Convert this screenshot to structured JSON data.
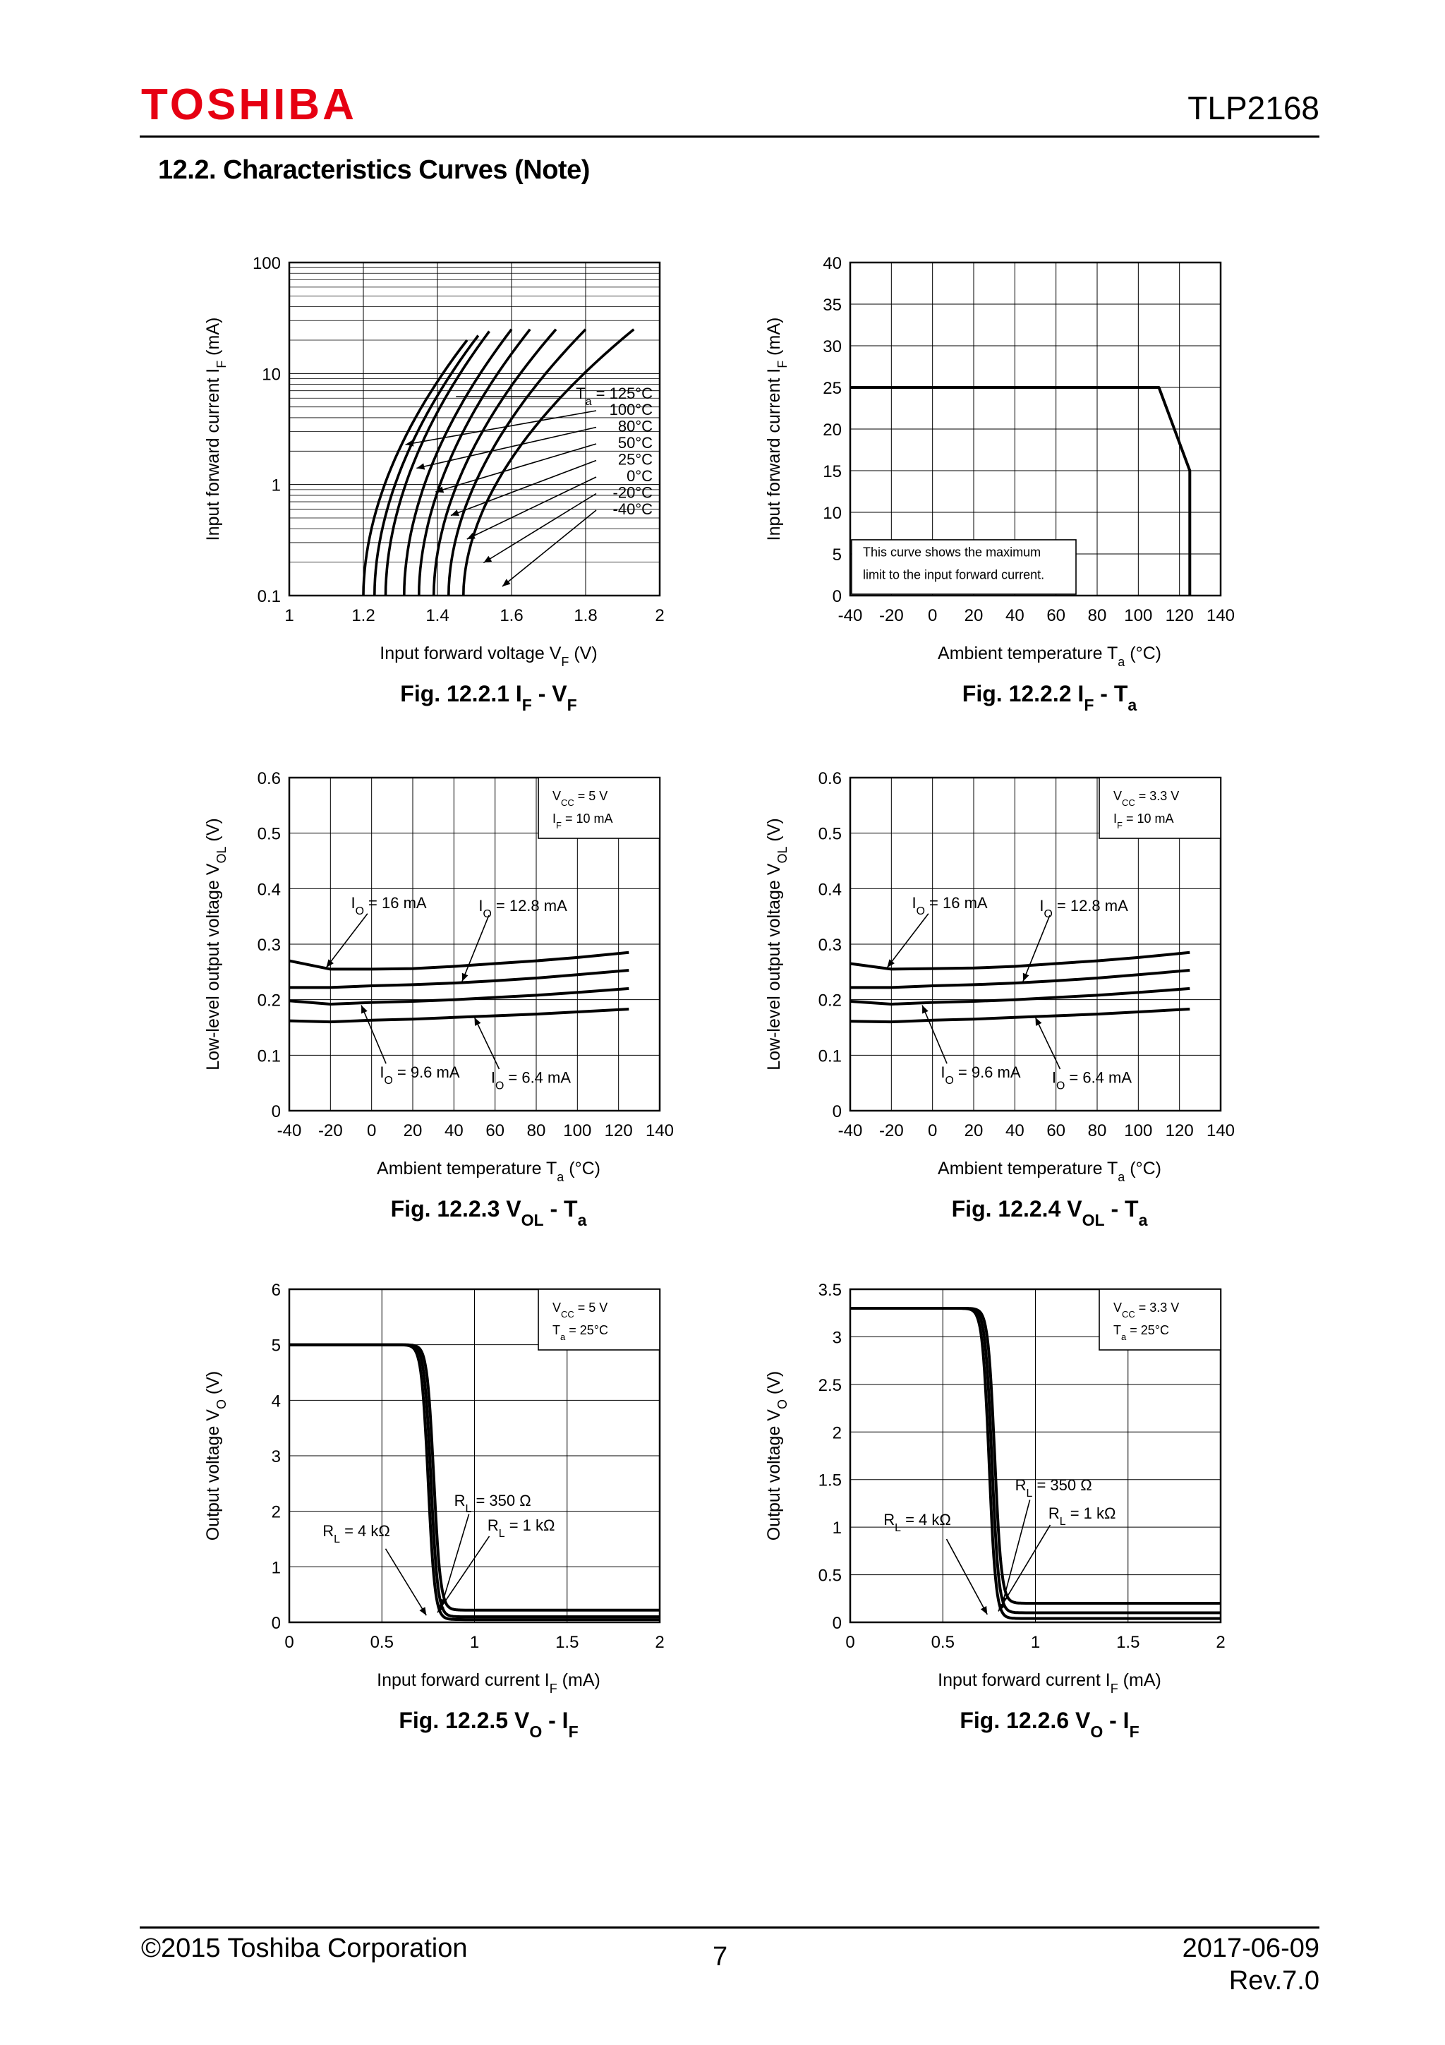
{
  "header": {
    "logo": "TOSHIBA",
    "part": "TLP2168",
    "section_title": "12.2. Characteristics Curves (Note)"
  },
  "footer": {
    "copyright": "©2015 Toshiba Corporation",
    "page": "7",
    "date": "2017-06-09",
    "rev": "Rev.7.0"
  },
  "chart_data": [
    {
      "id": "fig1",
      "type": "line",
      "yscale": "log",
      "caption": {
        "fig": "Fig. 12.2.1",
        "y": "I",
        "ys": "F",
        "x": "V",
        "xs": "F"
      },
      "xlabel": {
        "text": "Input forward voltage",
        "sym": "V",
        "sub": "F",
        "unit": "(V)"
      },
      "ylabel": {
        "text": "Input forward current",
        "sym": "I",
        "sub": "F",
        "unit": "(mA)"
      },
      "xlim": [
        1,
        2
      ],
      "ylim": [
        0.1,
        100
      ],
      "xticks": [
        1,
        1.2,
        1.4,
        1.6,
        1.8,
        2
      ],
      "xtick_labels": [
        "1",
        "1.2",
        "1.4",
        "1.6",
        "1.8",
        "2"
      ],
      "yticks": [
        0.1,
        1,
        10,
        100
      ],
      "ytick_labels": [
        "0.1",
        "1",
        "10",
        "100"
      ],
      "legend_title": {
        "sym": "T",
        "sub": "a",
        "rest": " = 125°C"
      },
      "legend_rest": [
        "100°C",
        "80°C",
        "50°C",
        "25°C",
        "0°C",
        "-20°C",
        "-40°C"
      ],
      "series": [
        {
          "name": "125°C",
          "vf0": 1.2,
          "vf1": 1.48,
          "if_max": 20
        },
        {
          "name": "100°C",
          "vf0": 1.23,
          "vf1": 1.51,
          "if_max": 22
        },
        {
          "name": "80°C",
          "vf0": 1.26,
          "vf1": 1.54,
          "if_max": 24
        },
        {
          "name": "50°C",
          "vf0": 1.31,
          "vf1": 1.6,
          "if_max": 25
        },
        {
          "name": "25°C",
          "vf0": 1.35,
          "vf1": 1.65,
          "if_max": 25
        },
        {
          "name": "0°C",
          "vf0": 1.39,
          "vf1": 1.72,
          "if_max": 25
        },
        {
          "name": "-20°C",
          "vf0": 1.43,
          "vf1": 1.8,
          "if_max": 25
        },
        {
          "name": "-40°C",
          "vf0": 1.47,
          "vf1": 1.93,
          "if_max": 25
        }
      ]
    },
    {
      "id": "fig2",
      "type": "line",
      "caption": {
        "fig": "Fig. 12.2.2",
        "y": "I",
        "ys": "F",
        "x": "T",
        "xs": "a"
      },
      "xlabel": {
        "text": "Ambient temperature",
        "sym": "T",
        "sub": "a",
        "unit": "(°C)"
      },
      "ylabel": {
        "text": "Input forward current",
        "sym": "I",
        "sub": "F",
        "unit": "(mA)"
      },
      "xlim": [
        -40,
        140
      ],
      "ylim": [
        0,
        40
      ],
      "xticks": [
        -40,
        -20,
        0,
        20,
        40,
        60,
        80,
        100,
        120,
        140
      ],
      "xtick_labels": [
        "-40",
        "-20",
        "0",
        "20",
        "40",
        "60",
        "80",
        "100",
        "120",
        "140"
      ],
      "yticks": [
        0,
        5,
        10,
        15,
        20,
        25,
        30,
        35,
        40
      ],
      "ytick_labels": [
        "0",
        "5",
        "10",
        "15",
        "20",
        "25",
        "30",
        "35",
        "40"
      ],
      "note": [
        "This curve shows the maximum",
        "limit to the input forward current."
      ],
      "series": [
        {
          "name": "max IF",
          "x": [
            -40,
            110,
            125,
            125
          ],
          "y": [
            25,
            25,
            15,
            0
          ]
        }
      ]
    },
    {
      "id": "fig3",
      "type": "line",
      "caption": {
        "fig": "Fig. 12.2.3",
        "y": "V",
        "ys": "OL",
        "x": "T",
        "xs": "a"
      },
      "xlabel": {
        "text": "Ambient temperature",
        "sym": "T",
        "sub": "a",
        "unit": "(°C)"
      },
      "ylabel": {
        "text": "Low-level output voltage",
        "sym": "V",
        "sub": "OL",
        "unit": "(V)"
      },
      "xlim": [
        -40,
        140
      ],
      "ylim": [
        0,
        0.6
      ],
      "xticks": [
        -40,
        -20,
        0,
        20,
        40,
        60,
        80,
        100,
        120,
        140
      ],
      "xtick_labels": [
        "-40",
        "-20",
        "0",
        "20",
        "40",
        "60",
        "80",
        "100",
        "120",
        "140"
      ],
      "yticks": [
        0,
        0.1,
        0.2,
        0.3,
        0.4,
        0.5,
        0.6
      ],
      "ytick_labels": [
        "0",
        "0.1",
        "0.2",
        "0.3",
        "0.4",
        "0.5",
        "0.6"
      ],
      "conditions": [
        {
          "sym": "V",
          "sub": "CC",
          "rest": " = 5 V"
        },
        {
          "sym": "I",
          "sub": "F",
          "rest": " = 10 mA"
        }
      ],
      "labels": [
        {
          "sym": "I",
          "sub": "O",
          "rest": " = 16 mA"
        },
        {
          "sym": "I",
          "sub": "O",
          "rest": " = 12.8 mA"
        },
        {
          "sym": "I",
          "sub": "O",
          "rest": " = 9.6 mA"
        },
        {
          "sym": "I",
          "sub": "O",
          "rest": " = 6.4 mA"
        }
      ],
      "x": [
        -40,
        -20,
        0,
        20,
        40,
        60,
        80,
        100,
        125
      ],
      "series": [
        {
          "name": "IO = 16 mA",
          "values": [
            0.27,
            0.255,
            0.255,
            0.256,
            0.26,
            0.265,
            0.27,
            0.276,
            0.285
          ]
        },
        {
          "name": "IO = 12.8 mA",
          "values": [
            0.222,
            0.222,
            0.225,
            0.227,
            0.23,
            0.234,
            0.239,
            0.245,
            0.253
          ]
        },
        {
          "name": "IO = 9.6 mA",
          "values": [
            0.198,
            0.192,
            0.195,
            0.197,
            0.2,
            0.204,
            0.208,
            0.213,
            0.22
          ]
        },
        {
          "name": "IO = 6.4 mA",
          "values": [
            0.162,
            0.16,
            0.163,
            0.165,
            0.168,
            0.171,
            0.174,
            0.178,
            0.183
          ]
        }
      ]
    },
    {
      "id": "fig4",
      "type": "line",
      "caption": {
        "fig": "Fig. 12.2.4",
        "y": "V",
        "ys": "OL",
        "x": "T",
        "xs": "a"
      },
      "xlabel": {
        "text": "Ambient temperature",
        "sym": "T",
        "sub": "a",
        "unit": "(°C)"
      },
      "ylabel": {
        "text": "Low-level output voltage",
        "sym": "V",
        "sub": "OL",
        "unit": "(V)"
      },
      "xlim": [
        -40,
        140
      ],
      "ylim": [
        0,
        0.6
      ],
      "xticks": [
        -40,
        -20,
        0,
        20,
        40,
        60,
        80,
        100,
        120,
        140
      ],
      "xtick_labels": [
        "-40",
        "-20",
        "0",
        "20",
        "40",
        "60",
        "80",
        "100",
        "120",
        "140"
      ],
      "yticks": [
        0,
        0.1,
        0.2,
        0.3,
        0.4,
        0.5,
        0.6
      ],
      "ytick_labels": [
        "0",
        "0.1",
        "0.2",
        "0.3",
        "0.4",
        "0.5",
        "0.6"
      ],
      "conditions": [
        {
          "sym": "V",
          "sub": "CC",
          "rest": " = 3.3 V"
        },
        {
          "sym": "I",
          "sub": "F",
          "rest": " = 10 mA"
        }
      ],
      "labels": [
        {
          "sym": "I",
          "sub": "O",
          "rest": " = 16 mA"
        },
        {
          "sym": "I",
          "sub": "O",
          "rest": " = 12.8 mA"
        },
        {
          "sym": "I",
          "sub": "O",
          "rest": " = 9.6 mA"
        },
        {
          "sym": "I",
          "sub": "O",
          "rest": " = 6.4 mA"
        }
      ],
      "x": [
        -40,
        -20,
        0,
        20,
        40,
        60,
        80,
        100,
        125
      ],
      "series": [
        {
          "name": "IO = 16 mA",
          "values": [
            0.265,
            0.255,
            0.256,
            0.257,
            0.26,
            0.265,
            0.27,
            0.276,
            0.285
          ]
        },
        {
          "name": "IO = 12.8 mA",
          "values": [
            0.222,
            0.222,
            0.225,
            0.227,
            0.23,
            0.234,
            0.239,
            0.245,
            0.253
          ]
        },
        {
          "name": "IO = 9.6 mA",
          "values": [
            0.197,
            0.192,
            0.195,
            0.197,
            0.2,
            0.204,
            0.208,
            0.213,
            0.22
          ]
        },
        {
          "name": "IO = 6.4 mA",
          "values": [
            0.161,
            0.16,
            0.163,
            0.165,
            0.168,
            0.171,
            0.174,
            0.178,
            0.183
          ]
        }
      ]
    },
    {
      "id": "fig5",
      "type": "line",
      "caption": {
        "fig": "Fig. 12.2.5",
        "y": "V",
        "ys": "O",
        "x": "I",
        "xs": "F"
      },
      "xlabel": {
        "text": "Input forward current",
        "sym": "I",
        "sub": "F",
        "unit": "(mA)"
      },
      "ylabel": {
        "text": "Output voltage",
        "sym": "V",
        "sub": "O",
        "unit": "(V)"
      },
      "xlim": [
        0,
        2
      ],
      "ylim": [
        0,
        6
      ],
      "xticks": [
        0,
        0.5,
        1,
        1.5,
        2
      ],
      "xtick_labels": [
        "0",
        "0.5",
        "1",
        "1.5",
        "2"
      ],
      "yticks": [
        0,
        1,
        2,
        3,
        4,
        5,
        6
      ],
      "ytick_labels": [
        "0",
        "1",
        "2",
        "3",
        "4",
        "5",
        "6"
      ],
      "conditions": [
        {
          "sym": "V",
          "sub": "CC",
          "rest": " = 5 V"
        },
        {
          "sym": "T",
          "sub": "a",
          "rest": " = 25°C"
        }
      ],
      "labels": [
        {
          "sym": "R",
          "sub": "L",
          "rest": " = 350 Ω"
        },
        {
          "sym": "R",
          "sub": "L",
          "rest": " = 1 kΩ"
        },
        {
          "sym": "R",
          "sub": "L",
          "rest": " = 4 kΩ"
        }
      ],
      "vcc": 5,
      "series": [
        {
          "name": "RL = 4 kΩ",
          "x_th": 0.75,
          "v_low": 0.05
        },
        {
          "name": "RL = 1 kΩ",
          "x_th": 0.765,
          "v_low": 0.1
        },
        {
          "name": "RL = 350 Ω",
          "x_th": 0.78,
          "v_low": 0.22
        }
      ]
    },
    {
      "id": "fig6",
      "type": "line",
      "caption": {
        "fig": "Fig. 12.2.6",
        "y": "V",
        "ys": "O",
        "x": "I",
        "xs": "F"
      },
      "xlabel": {
        "text": "Input forward current",
        "sym": "I",
        "sub": "F",
        "unit": "(mA)"
      },
      "ylabel": {
        "text": "Output voltage",
        "sym": "V",
        "sub": "O",
        "unit": "(V)"
      },
      "xlim": [
        0,
        2
      ],
      "ylim": [
        0,
        3.5
      ],
      "xticks": [
        0,
        0.5,
        1,
        1.5,
        2
      ],
      "xtick_labels": [
        "0",
        "0.5",
        "1",
        "1.5",
        "2"
      ],
      "yticks": [
        0,
        0.5,
        1,
        1.5,
        2,
        2.5,
        3,
        3.5
      ],
      "ytick_labels": [
        "0",
        "0.5",
        "1",
        "1.5",
        "2",
        "2.5",
        "3",
        "3.5"
      ],
      "conditions": [
        {
          "sym": "V",
          "sub": "CC",
          "rest": " = 3.3 V"
        },
        {
          "sym": "T",
          "sub": "a",
          "rest": " = 25°C"
        }
      ],
      "labels": [
        {
          "sym": "R",
          "sub": "L",
          "rest": " = 350 Ω"
        },
        {
          "sym": "R",
          "sub": "L",
          "rest": " = 1 kΩ"
        },
        {
          "sym": "R",
          "sub": "L",
          "rest": " = 4 kΩ"
        }
      ],
      "vcc": 3.3,
      "series": [
        {
          "name": "RL = 4 kΩ",
          "x_th": 0.75,
          "v_low": 0.04
        },
        {
          "name": "RL = 1 kΩ",
          "x_th": 0.765,
          "v_low": 0.1
        },
        {
          "name": "RL = 350 Ω",
          "x_th": 0.78,
          "v_low": 0.2
        }
      ]
    }
  ]
}
